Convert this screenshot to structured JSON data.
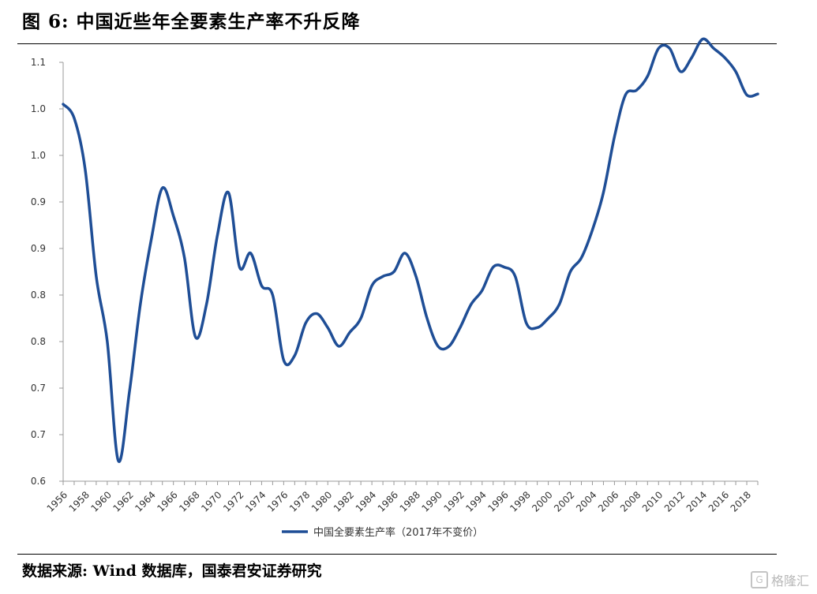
{
  "figure": {
    "title": "图 6:  中国近些年全要素生产率不升反降",
    "source": "数据来源:  Wind 数据库，国泰君安证券研究",
    "watermark": "格隆汇"
  },
  "chart_data": {
    "type": "line",
    "title": "",
    "xlabel": "",
    "ylabel": "",
    "y_tick_labels": [
      "0.6",
      "0.7",
      "0.7",
      "0.8",
      "0.8",
      "0.9",
      "0.9",
      "1.0",
      "1.0",
      "1.1"
    ],
    "ylim": [
      0.6,
      1.05
    ],
    "xlim": [
      1956,
      2019
    ],
    "x_tick_labels": [
      "1956",
      "1958",
      "1960",
      "1962",
      "1964",
      "1966",
      "1968",
      "1970",
      "1972",
      "1974",
      "1976",
      "1978",
      "1980",
      "1982",
      "1984",
      "1986",
      "1988",
      "1990",
      "1992",
      "1994",
      "1996",
      "1998",
      "2000",
      "2002",
      "2004",
      "2006",
      "2008",
      "2010",
      "2012",
      "2014",
      "2016",
      "2018"
    ],
    "grid": false,
    "legend_position": "bottom",
    "series": [
      {
        "name": "中国全要素生产率（2017年不变价）",
        "color": "#1f4e96",
        "x": [
          1956,
          1957,
          1958,
          1959,
          1960,
          1961,
          1962,
          1963,
          1964,
          1965,
          1966,
          1967,
          1968,
          1969,
          1970,
          1971,
          1972,
          1973,
          1974,
          1975,
          1976,
          1977,
          1978,
          1979,
          1980,
          1981,
          1982,
          1983,
          1984,
          1985,
          1986,
          1987,
          1988,
          1989,
          1990,
          1991,
          1992,
          1993,
          1994,
          1995,
          1996,
          1997,
          1998,
          1999,
          2000,
          2001,
          2002,
          2003,
          2004,
          2005,
          2006,
          2007,
          2008,
          2009,
          2010,
          2011,
          2012,
          2013,
          2014,
          2015,
          2016,
          2017,
          2018,
          2019
        ],
        "values": [
          1.005,
          0.99,
          0.935,
          0.82,
          0.75,
          0.622,
          0.695,
          0.79,
          0.86,
          0.915,
          0.885,
          0.84,
          0.755,
          0.79,
          0.865,
          0.91,
          0.83,
          0.845,
          0.81,
          0.8,
          0.73,
          0.735,
          0.77,
          0.78,
          0.765,
          0.745,
          0.76,
          0.775,
          0.81,
          0.82,
          0.825,
          0.845,
          0.82,
          0.775,
          0.745,
          0.745,
          0.765,
          0.79,
          0.805,
          0.83,
          0.83,
          0.82,
          0.77,
          0.765,
          0.775,
          0.79,
          0.825,
          0.84,
          0.87,
          0.91,
          0.97,
          1.015,
          1.02,
          1.035,
          1.065,
          1.065,
          1.04,
          1.055,
          1.075,
          1.065,
          1.055,
          1.04,
          1.015,
          1.016
        ]
      }
    ]
  }
}
